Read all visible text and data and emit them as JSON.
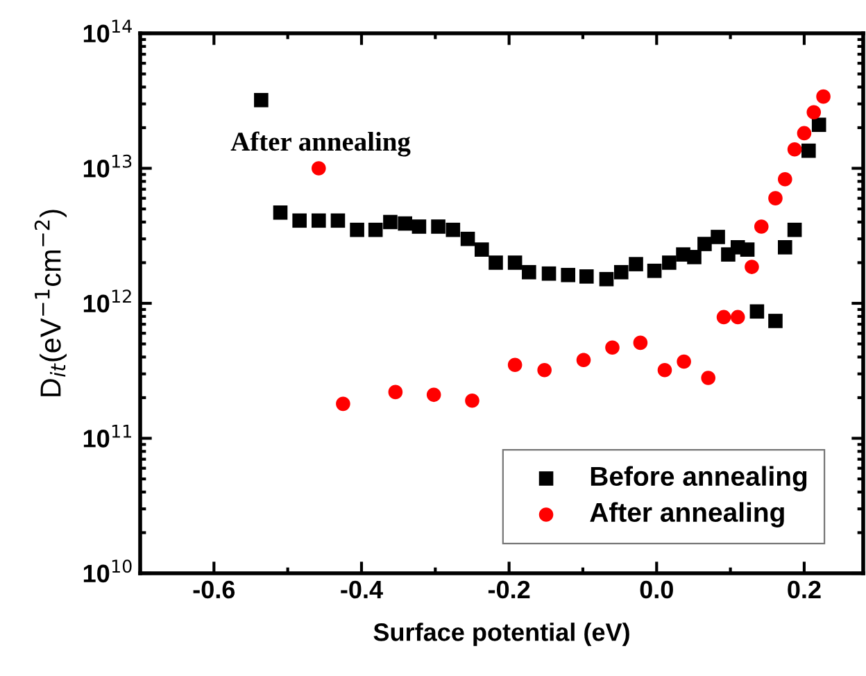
{
  "chart_data": {
    "type": "scatter",
    "xlabel": "Surface potential (eV)",
    "ylabel": "D$_{it}$(eV$^{−1}$cm$^{−2}$)",
    "annotations": [
      "After annealing"
    ],
    "xlim": [
      -0.7,
      0.28
    ],
    "xticks": [
      -0.6,
      -0.4,
      -0.2,
      {
        "value": 0,
        "label": "0.0"
      },
      0.2
    ],
    "ylim": [
      10000000000.0,
      100000000000000.0
    ],
    "yticks": [
      {
        "value": 10000000000.0,
        "label": "10$^{10}$"
      },
      {
        "value": 100000000000.0,
        "label": "10$^{11}$"
      },
      {
        "value": 1000000000000.0,
        "label": "10$^{12}$"
      },
      {
        "value": 10000000000000.0,
        "label": "10$^{13}$"
      },
      {
        "value": 100000000000000.0,
        "label": "10$^{14}$"
      }
    ],
    "log": "y",
    "grid": false,
    "legend": "bottom right",
    "series": [
      {
        "name": "Before annealing",
        "color": "#000000",
        "marker": "square",
        "x": [
          -0.536,
          -0.51,
          -0.484,
          -0.458,
          -0.432,
          -0.406,
          -0.381,
          -0.361,
          -0.341,
          -0.322,
          -0.296,
          -0.276,
          -0.256,
          -0.237,
          -0.218,
          -0.192,
          -0.173,
          -0.146,
          -0.12,
          -0.095,
          -0.068,
          -0.048,
          -0.028,
          -0.003,
          0.017,
          0.036,
          0.051,
          0.065,
          0.083,
          0.097,
          0.11,
          0.123,
          0.136,
          0.161,
          0.174,
          0.187,
          0.206,
          0.22
        ],
        "values": [
          32000000000000.0,
          4700000000000.0,
          4100000000000.0,
          4100000000000.0,
          4100000000000.0,
          3500000000000.0,
          3500000000000.0,
          4000000000000.0,
          3900000000000.0,
          3700000000000.0,
          3700000000000.0,
          3500000000000.0,
          3000000000000.0,
          2500000000000.0,
          2000000000000.0,
          2000000000000.0,
          1700000000000.0,
          1660000000000.0,
          1620000000000.0,
          1580000000000.0,
          1510000000000.0,
          1700000000000.0,
          1950000000000.0,
          1740000000000.0,
          2000000000000.0,
          2300000000000.0,
          2200000000000.0,
          2750000000000.0,
          3100000000000.0,
          2300000000000.0,
          2600000000000.0,
          2500000000000.0,
          870000000000.0,
          740000000000.0,
          2600000000000.0,
          3500000000000.0,
          13500000000000.0,
          21000000000000.0
        ]
      },
      {
        "name": "After annealing",
        "color": "#ff0000",
        "marker": "circle",
        "x": [
          -0.458,
          -0.425,
          -0.354,
          -0.302,
          -0.25,
          -0.192,
          -0.152,
          -0.099,
          -0.06,
          -0.022,
          0.011,
          0.037,
          0.07,
          0.091,
          0.11,
          0.129,
          0.142,
          0.161,
          0.174,
          0.187,
          0.2,
          0.213,
          0.226
        ],
        "values": [
          10000000000000.0,
          180000000000.0,
          220000000000.0,
          210000000000.0,
          190000000000.0,
          350000000000.0,
          320000000000.0,
          380000000000.0,
          470000000000.0,
          510000000000.0,
          320000000000.0,
          370000000000.0,
          280000000000.0,
          790000000000.0,
          790000000000.0,
          1860000000000.0,
          3700000000000.0,
          6000000000000.0,
          8300000000000.0,
          13800000000000.0,
          18200000000000.0,
          26000000000000.0,
          34000000000000.0
        ]
      }
    ]
  }
}
